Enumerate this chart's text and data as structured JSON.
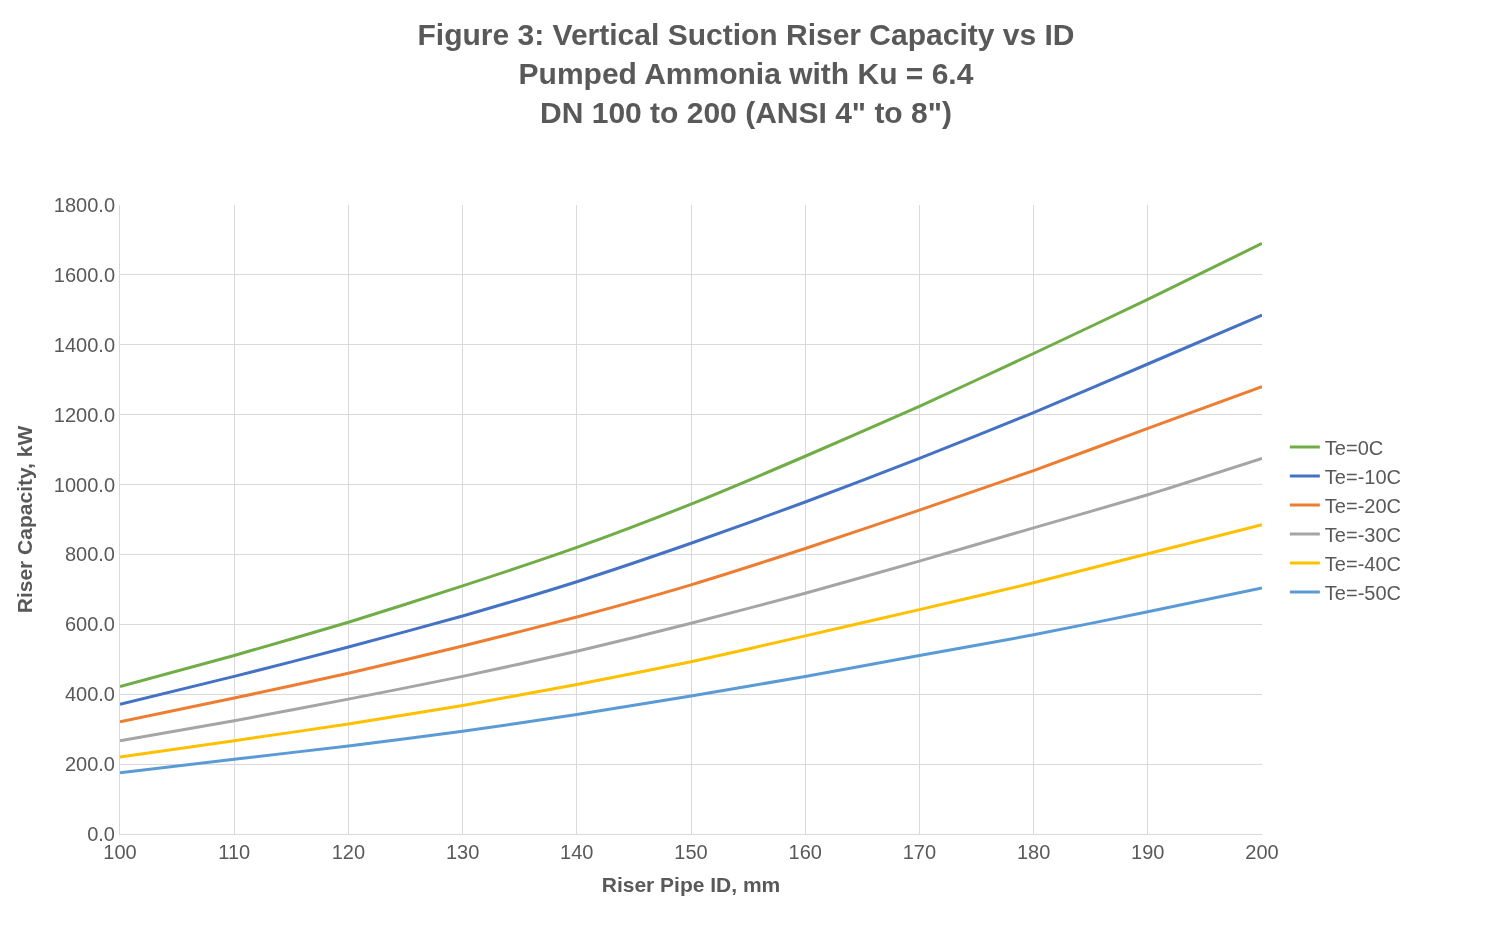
{
  "chart_data": {
    "type": "line",
    "title": "Figure 3: Vertical Suction Riser Capacity vs ID\nPumped Ammonia with Ku = 6.4\nDN 100 to 200 (ANSI 4\" to 8\")",
    "xlabel": "Riser Pipe ID, mm",
    "ylabel": "Riser Capacity, kW",
    "x": [
      100,
      110,
      120,
      130,
      140,
      150,
      160,
      170,
      180,
      190,
      200
    ],
    "series": [
      {
        "name": "Te=0C",
        "color": "#70ad47",
        "values": [
          422,
          511,
          606,
          710,
          820,
          944,
          1081,
          1224,
          1375,
          1530,
          1690
        ]
      },
      {
        "name": "Te=-10C",
        "color": "#4472c4",
        "values": [
          371,
          451,
          535,
          624,
          722,
          832,
          950,
          1075,
          1206,
          1345,
          1485
        ]
      },
      {
        "name": "Te=-20C",
        "color": "#ed7d31",
        "values": [
          321,
          389,
          460,
          538,
          621,
          713,
          817,
          927,
          1040,
          1161,
          1280
        ]
      },
      {
        "name": "Te=-30C",
        "color": "#a5a5a5",
        "values": [
          267,
          324,
          386,
          451,
          523,
          603,
          689,
          781,
          876,
          971,
          1075
        ]
      },
      {
        "name": "Te=-40C",
        "color": "#ffc000",
        "values": [
          220,
          267,
          315,
          368,
          428,
          493,
          567,
          642,
          719,
          802,
          885
        ]
      },
      {
        "name": "Te=-50C",
        "color": "#5b9bd5",
        "values": [
          175,
          214,
          252,
          294,
          342,
          395,
          451,
          511,
          570,
          636,
          704
        ]
      }
    ],
    "xlim": [
      100,
      200
    ],
    "xticks": [
      100,
      110,
      120,
      130,
      140,
      150,
      160,
      170,
      180,
      190,
      200
    ],
    "ylim": [
      0,
      1800
    ],
    "yticks": [
      {
        "value": 0,
        "label": "0.0"
      },
      {
        "value": 200,
        "label": "200.0"
      },
      {
        "value": 400,
        "label": "400.0"
      },
      {
        "value": 600,
        "label": "600.0"
      },
      {
        "value": 800,
        "label": "800.0"
      },
      {
        "value": 1000,
        "label": "1000.0"
      },
      {
        "value": 1200,
        "label": "1200.0"
      },
      {
        "value": 1400,
        "label": "1400.0"
      },
      {
        "value": 1600,
        "label": "1600.0"
      },
      {
        "value": 1800,
        "label": "1800.0"
      }
    ],
    "grid": true,
    "legend": "right",
    "marker": "none",
    "line_style": "solid"
  }
}
